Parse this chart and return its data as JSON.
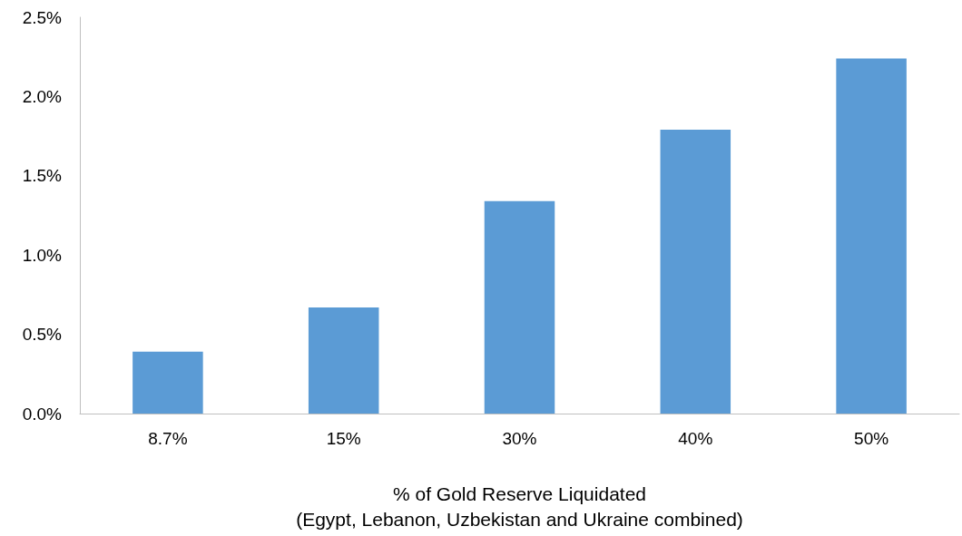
{
  "chart_data": {
    "type": "bar",
    "xlabel": "% of Gold Reserve Liquidated\n(Egypt, Lebanon, Uzbekistan and Ukraine combined)",
    "categories": [
      "8.7%",
      "15%",
      "30%",
      "40%",
      "50%"
    ],
    "values": [
      0.39,
      0.67,
      1.34,
      1.79,
      2.24
    ],
    "color": "#5b9bd5",
    "ylim": [
      0,
      2.5
    ],
    "yticks": [
      {
        "value": 0,
        "label": "0.0%"
      },
      {
        "value": 0.5,
        "label": "0.5%"
      },
      {
        "value": 1,
        "label": "1.0%"
      },
      {
        "value": 1.5,
        "label": "1.5%"
      },
      {
        "value": 2,
        "label": "2.0%"
      },
      {
        "value": 2.5,
        "label": "2.5%"
      }
    ],
    "grid": false
  }
}
